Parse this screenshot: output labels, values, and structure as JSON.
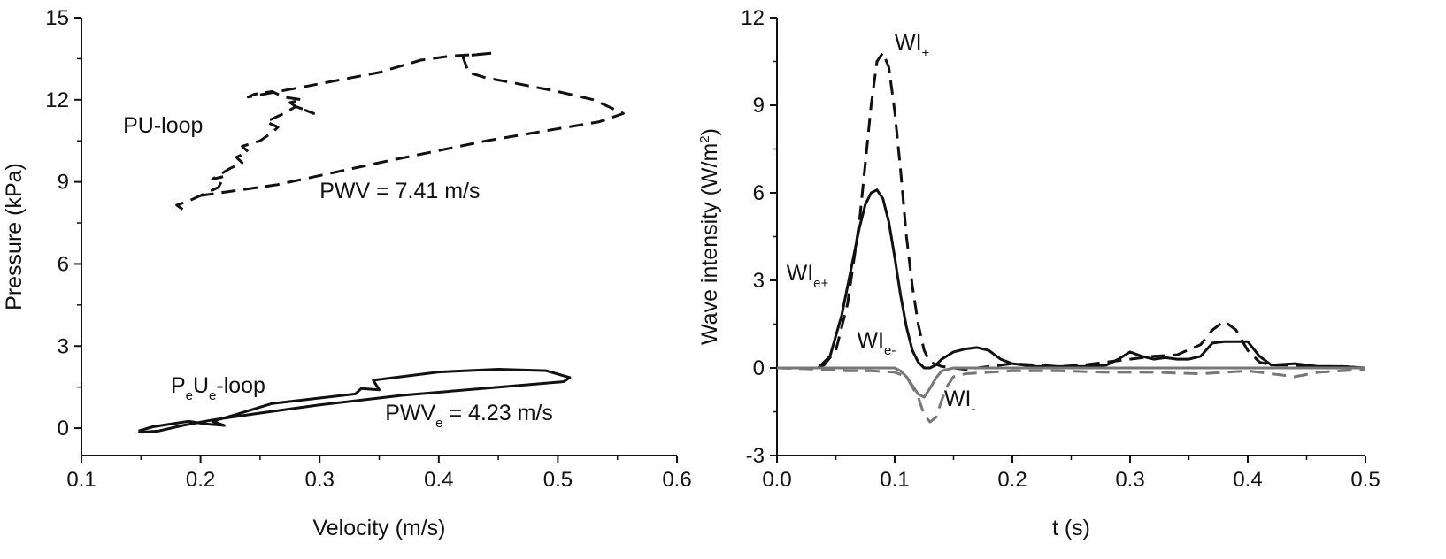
{
  "chart_data": [
    {
      "type": "line",
      "xlabel": "Velocity (m/s)",
      "ylabel": "Pressure (kPa)",
      "xlim": [
        0.1,
        0.6
      ],
      "ylim": [
        -1,
        15
      ],
      "xticks": [
        "0.1",
        "0.2",
        "0.3",
        "0.4",
        "0.5",
        "0.6"
      ],
      "yticks": [
        "0",
        "3",
        "6",
        "9",
        "12",
        "15"
      ],
      "grid": false,
      "annotations": [
        {
          "id": "pu-loop-label",
          "text": "PU-loop",
          "x": 0.135,
          "y": 10.8
        },
        {
          "id": "pwv-label",
          "text": "PWV = 7.41 m/s",
          "x": 0.3,
          "y": 8.4
        },
        {
          "id": "peue-loop-label",
          "parts": [
            "P",
            "e",
            "U",
            "e",
            "-loop"
          ],
          "x": 0.175,
          "y": 1.3
        },
        {
          "id": "pwve-label",
          "parts": [
            "PWV",
            "e",
            " = 4.23 m/s"
          ],
          "x": 0.355,
          "y": 0.3
        }
      ],
      "series": [
        {
          "id": "pu-loop",
          "style": "dashed",
          "color": "#111111",
          "x": [
            0.185,
            0.18,
            0.19,
            0.205,
            0.215,
            0.22,
            0.21,
            0.225,
            0.235,
            0.23,
            0.24,
            0.235,
            0.25,
            0.26,
            0.265,
            0.255,
            0.27,
            0.28,
            0.29,
            0.295,
            0.28,
            0.275,
            0.285,
            0.27,
            0.26,
            0.245,
            0.24,
            0.29,
            0.35,
            0.385,
            0.41,
            0.43,
            0.445,
            0.42,
            0.425,
            0.44,
            0.465,
            0.5,
            0.53,
            0.555,
            0.535,
            0.44,
            0.35,
            0.265,
            0.2
          ],
          "y": [
            8.0,
            8.15,
            8.3,
            8.6,
            8.8,
            9.2,
            9.1,
            9.5,
            9.7,
            9.9,
            10.1,
            10.3,
            10.5,
            10.8,
            11.0,
            11.2,
            11.5,
            11.75,
            11.6,
            11.5,
            11.75,
            11.9,
            12.0,
            12.1,
            12.3,
            12.2,
            12.1,
            12.5,
            13.0,
            13.45,
            13.6,
            13.65,
            13.7,
            13.6,
            13.0,
            12.8,
            12.6,
            12.3,
            12.0,
            11.5,
            11.2,
            10.5,
            9.7,
            8.9,
            8.5
          ]
        },
        {
          "id": "peue-loop",
          "style": "solid",
          "color": "#111111",
          "x": [
            0.148,
            0.16,
            0.175,
            0.19,
            0.205,
            0.22,
            0.21,
            0.23,
            0.26,
            0.3,
            0.33,
            0.335,
            0.35,
            0.345,
            0.4,
            0.45,
            0.49,
            0.51,
            0.505,
            0.45,
            0.37,
            0.3,
            0.25,
            0.21,
            0.185,
            0.165,
            0.15,
            0.148
          ],
          "y": [
            -0.1,
            0.05,
            0.15,
            0.25,
            0.15,
            0.1,
            0.25,
            0.5,
            0.9,
            1.1,
            1.25,
            1.45,
            1.4,
            1.75,
            2.05,
            2.15,
            2.1,
            1.85,
            1.7,
            1.5,
            1.2,
            0.85,
            0.55,
            0.3,
            0.1,
            -0.1,
            -0.15,
            -0.1
          ]
        }
      ]
    },
    {
      "type": "line",
      "xlabel": "t (s)",
      "ylabel_parts": [
        "Wave intensity (W/m",
        "2",
        ")"
      ],
      "xlim": [
        0,
        0.5
      ],
      "ylim": [
        -3,
        12
      ],
      "xticks": [
        "0.0",
        "0.1",
        "0.2",
        "0.3",
        "0.4",
        "0.5"
      ],
      "yticks": [
        "-3",
        "0",
        "3",
        "6",
        "9",
        "12"
      ],
      "grid": false,
      "annotations": [
        {
          "id": "wi-plus-label",
          "parts": [
            "WI",
            "+"
          ],
          "x": 0.1,
          "y": 10.9
        },
        {
          "id": "wi-eplus-label",
          "parts": [
            "WI",
            "e+"
          ],
          "x": 0.008,
          "y": 3.0
        },
        {
          "id": "wi-eminus-label",
          "parts": [
            "WI",
            "e-"
          ],
          "x": 0.068,
          "y": 0.7
        },
        {
          "id": "wi-minus-label",
          "parts": [
            "WI",
            "-"
          ],
          "x": 0.142,
          "y": -1.3
        }
      ],
      "series": [
        {
          "id": "wi-plus",
          "style": "dashed",
          "color": "#111111",
          "x": [
            0,
            0.03,
            0.04,
            0.05,
            0.06,
            0.07,
            0.075,
            0.08,
            0.085,
            0.09,
            0.095,
            0.1,
            0.105,
            0.11,
            0.115,
            0.12,
            0.125,
            0.13,
            0.14,
            0.15,
            0.16,
            0.17,
            0.18,
            0.19,
            0.2,
            0.22,
            0.24,
            0.26,
            0.28,
            0.3,
            0.32,
            0.34,
            0.36,
            0.37,
            0.38,
            0.39,
            0.4,
            0.41,
            0.42,
            0.44,
            0.46,
            0.48,
            0.5
          ],
          "y": [
            0,
            0,
            0.1,
            0.6,
            2.2,
            5.0,
            7.0,
            9.0,
            10.5,
            10.8,
            10.3,
            8.8,
            6.8,
            4.5,
            2.8,
            1.5,
            0.6,
            0.2,
            0.05,
            0.0,
            -0.05,
            0.0,
            0.05,
            0.1,
            0.15,
            0.1,
            0.05,
            0.1,
            0.2,
            0.3,
            0.4,
            0.45,
            0.8,
            1.3,
            1.6,
            1.3,
            0.6,
            0.2,
            0.1,
            0.1,
            0.05,
            0.05,
            0
          ]
        },
        {
          "id": "wi-eplus",
          "style": "solid",
          "color": "#111111",
          "x": [
            0,
            0.035,
            0.045,
            0.055,
            0.065,
            0.07,
            0.075,
            0.08,
            0.085,
            0.09,
            0.095,
            0.1,
            0.105,
            0.11,
            0.115,
            0.12,
            0.125,
            0.13,
            0.135,
            0.14,
            0.15,
            0.16,
            0.17,
            0.18,
            0.19,
            0.2,
            0.22,
            0.24,
            0.26,
            0.28,
            0.29,
            0.3,
            0.31,
            0.32,
            0.33,
            0.34,
            0.35,
            0.36,
            0.37,
            0.38,
            0.39,
            0.4,
            0.41,
            0.42,
            0.44,
            0.46,
            0.48,
            0.5
          ],
          "y": [
            0,
            0,
            0.4,
            1.8,
            3.8,
            4.8,
            5.6,
            6.0,
            6.1,
            5.8,
            5.0,
            3.8,
            2.5,
            1.4,
            0.6,
            0.2,
            0.0,
            0.0,
            0.1,
            0.3,
            0.55,
            0.65,
            0.7,
            0.6,
            0.3,
            0.15,
            0.05,
            0.05,
            0.05,
            0.1,
            0.3,
            0.55,
            0.4,
            0.3,
            0.35,
            0.3,
            0.3,
            0.4,
            0.85,
            0.9,
            0.9,
            0.9,
            0.4,
            0.1,
            0.15,
            0.05,
            0.05,
            0
          ]
        },
        {
          "id": "wi-eminus",
          "style": "solid",
          "color": "#777777",
          "x": [
            0,
            0.05,
            0.08,
            0.1,
            0.105,
            0.11,
            0.115,
            0.12,
            0.125,
            0.13,
            0.135,
            0.14,
            0.15,
            0.2,
            0.3,
            0.4,
            0.5
          ],
          "y": [
            0,
            0,
            0,
            0,
            -0.1,
            -0.3,
            -0.6,
            -0.9,
            -1.0,
            -0.7,
            -0.35,
            -0.1,
            0,
            0,
            0,
            0,
            0
          ]
        },
        {
          "id": "wi-minus",
          "style": "dashed",
          "color": "#777777",
          "x": [
            0,
            0.04,
            0.06,
            0.08,
            0.1,
            0.11,
            0.12,
            0.125,
            0.13,
            0.135,
            0.14,
            0.145,
            0.15,
            0.16,
            0.18,
            0.2,
            0.24,
            0.28,
            0.32,
            0.36,
            0.4,
            0.42,
            0.44,
            0.46,
            0.5
          ],
          "y": [
            0,
            -0.05,
            -0.1,
            -0.1,
            -0.15,
            -0.3,
            -1.0,
            -1.6,
            -1.85,
            -1.7,
            -1.1,
            -0.6,
            -0.3,
            -0.2,
            -0.15,
            -0.1,
            -0.1,
            -0.15,
            -0.15,
            -0.2,
            -0.1,
            -0.2,
            -0.3,
            -0.15,
            -0.05
          ]
        }
      ]
    }
  ]
}
